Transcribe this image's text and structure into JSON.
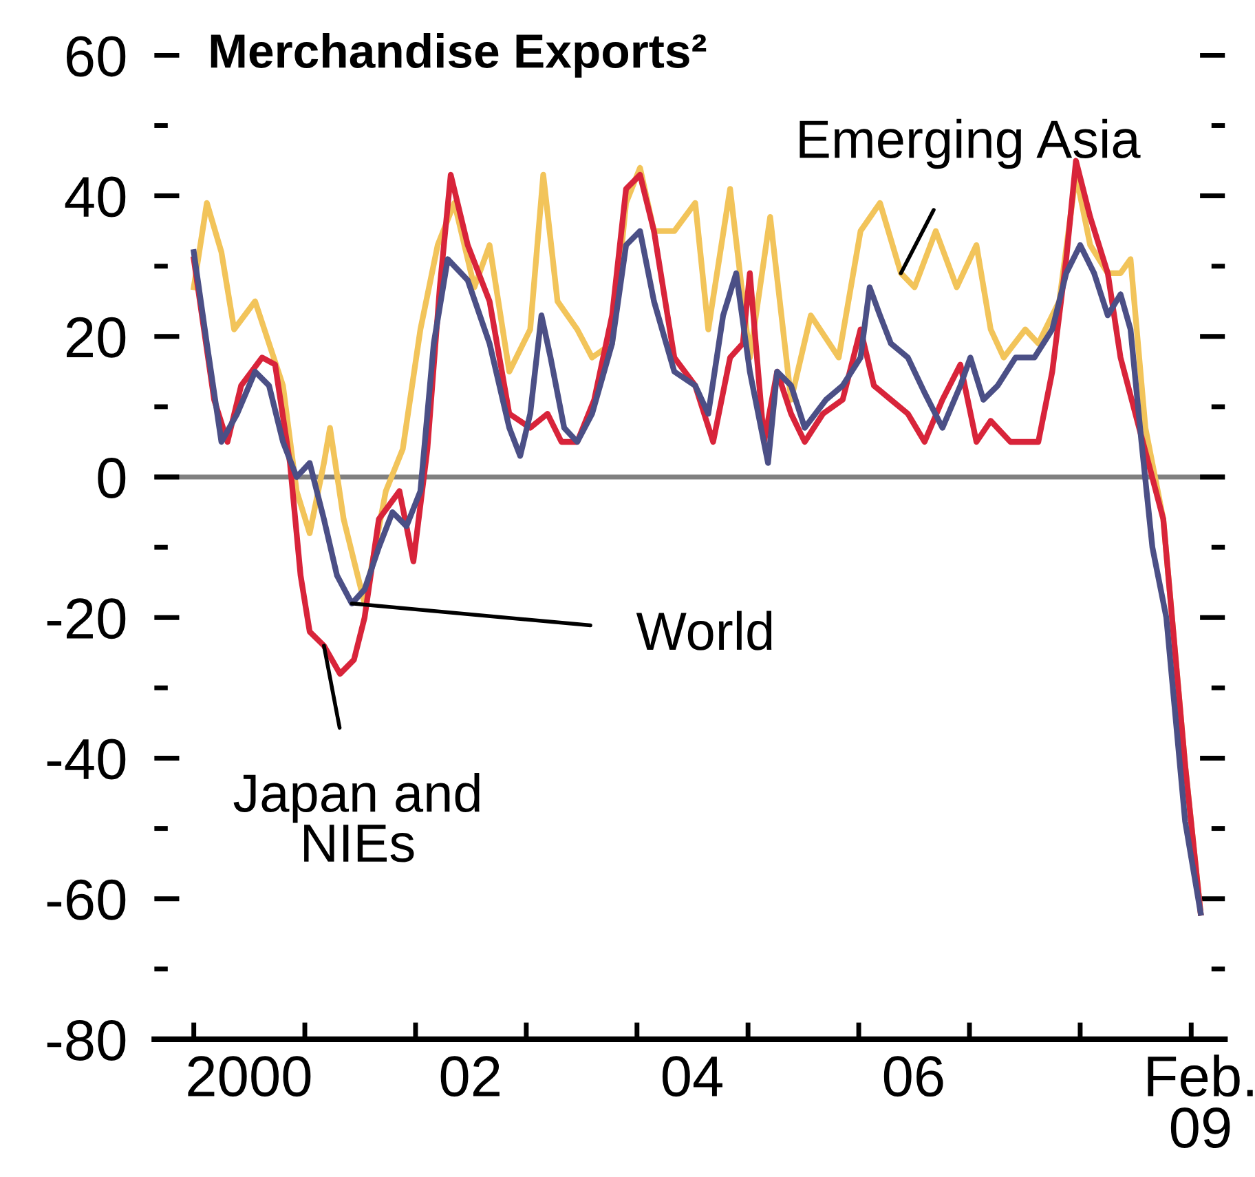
{
  "chart_data": {
    "type": "line",
    "title": "Merchandise Exports²",
    "xlim": [
      "1999-08-24",
      "2009-04-22"
    ],
    "xticks": [
      {
        "value": "2000-01-01",
        "label": null
      },
      {
        "value": "2001-01-01",
        "label": null
      },
      {
        "value": "2002-01-01",
        "label": null
      },
      {
        "value": "2003-01-01",
        "label": null
      },
      {
        "value": "2004-01-01",
        "label": null
      },
      {
        "value": "2005-01-01",
        "label": null
      },
      {
        "value": "2006-01-01",
        "label": null
      },
      {
        "value": "2007-01-01",
        "label": null
      },
      {
        "value": "2008-01-01",
        "label": null
      },
      {
        "value": "2009-01-01",
        "label": null
      },
      {
        "value": "2000-07-01",
        "label": "2000"
      },
      {
        "value": "2002-07-01",
        "label": "02"
      },
      {
        "value": "2004-07-01",
        "label": "04"
      },
      {
        "value": "2006-07-01",
        "label": "06"
      },
      {
        "value": "2009-02-01",
        "label": "Feb.\n09"
      }
    ],
    "ylim": [
      -80,
      60
    ],
    "yticks": [
      -80,
      {
        "value": -70,
        "label": null
      },
      -60,
      {
        "value": -50,
        "label": null
      },
      -40,
      {
        "value": -30,
        "label": null
      },
      -20,
      {
        "value": -10,
        "label": null
      },
      0,
      {
        "value": 10,
        "label": null
      },
      20,
      {
        "value": 30,
        "label": null
      },
      40,
      {
        "value": 50,
        "label": null
      },
      60
    ],
    "ref_lines": [
      {
        "axis": "y",
        "value": 0,
        "label": null,
        "color": "#808080"
      }
    ],
    "grid": false,
    "legend": false,
    "marker": "none",
    "line_style": "solid",
    "series": [
      {
        "name": "Emerging Asia",
        "color": "#f2c45a",
        "x": [
          "2000-01-01",
          "2000-02-13",
          "2000-04-01",
          "2000-05-13",
          "2000-07-21",
          "2000-09-05",
          "2000-10-21",
          "2000-12-05",
          "2001-01-17",
          "2001-03-05",
          "2001-03-25",
          "2001-05-09",
          "2001-07-17",
          "2001-09-25",
          "2001-11-20",
          "2002-01-17",
          "2002-03-15",
          "2002-05-09",
          "2002-07-14",
          "2002-09-02",
          "2002-11-06",
          "2003-01-14",
          "2003-02-26",
          "2003-04-14",
          "2003-06-18",
          "2003-08-06",
          "2003-10-11",
          "2003-11-26",
          "2004-01-11",
          "2004-02-26",
          "2004-05-03",
          "2004-07-11",
          "2004-08-23",
          "2004-11-03",
          "2005-01-07",
          "2005-03-15",
          "2005-05-23",
          "2005-07-27",
          "2005-10-27",
          "2006-01-07",
          "2006-03-12",
          "2006-05-20",
          "2006-07-04",
          "2006-09-12",
          "2006-11-20",
          "2007-01-24",
          "2007-03-12",
          "2007-04-24",
          "2007-07-04",
          "2007-08-16",
          "2007-10-24",
          "2007-12-18",
          "2008-02-03",
          "2008-04-01",
          "2008-05-13",
          "2008-06-15",
          "2008-08-03",
          "2008-10-01",
          "2008-12-12",
          "2009-02-01"
        ],
        "values": [
          27,
          39,
          32,
          21,
          25,
          19,
          13,
          -2,
          -8,
          2,
          7,
          -6,
          -18,
          -2,
          4,
          21,
          33,
          39,
          27,
          33,
          15,
          21,
          43,
          25,
          21,
          17,
          19,
          39,
          44,
          35,
          35,
          39,
          21,
          41,
          17,
          37,
          11,
          23,
          17,
          35,
          39,
          29,
          27,
          35,
          27,
          33,
          21,
          17,
          21,
          19,
          25,
          43,
          33,
          29,
          29,
          31,
          7,
          -6,
          -41,
          -62
        ]
      },
      {
        "name": "Japan and NIEs",
        "color": "#d8243a",
        "x": [
          "2000-01-01",
          "2000-03-08",
          "2000-04-21",
          "2000-06-05",
          "2000-08-13",
          "2000-09-25",
          "2000-11-13",
          "2000-12-18",
          "2001-01-17",
          "2001-03-05",
          "2001-04-27",
          "2001-06-12",
          "2001-07-17",
          "2001-09-02",
          "2001-11-09",
          "2001-12-25",
          "2002-02-09",
          "2002-03-22",
          "2002-04-27",
          "2002-06-22",
          "2002-09-02",
          "2002-11-06",
          "2003-01-14",
          "2003-03-12",
          "2003-04-27",
          "2003-06-18",
          "2003-08-13",
          "2003-10-11",
          "2003-11-26",
          "2004-01-11",
          "2004-02-26",
          "2004-05-03",
          "2004-07-11",
          "2004-09-08",
          "2004-11-03",
          "2004-12-15",
          "2005-01-07",
          "2005-02-23",
          "2005-04-07",
          "2005-05-23",
          "2005-07-07",
          "2005-09-05",
          "2005-11-09",
          "2006-01-07",
          "2006-02-20",
          "2006-04-17",
          "2006-06-12",
          "2006-08-06",
          "2006-10-04",
          "2006-12-02",
          "2007-01-24",
          "2007-03-12",
          "2007-05-16",
          "2007-08-16",
          "2007-10-01",
          "2007-11-16",
          "2007-12-18",
          "2008-02-03",
          "2008-04-01",
          "2008-05-13",
          "2008-07-01",
          "2008-08-13",
          "2008-10-01",
          "2008-12-12",
          "2009-02-01"
        ],
        "values": [
          31,
          11,
          5,
          13,
          17,
          16,
          2,
          -14,
          -22,
          -24,
          -28,
          -26,
          -20,
          -6,
          -2,
          -12,
          4,
          27,
          43,
          33,
          25,
          9,
          7,
          9,
          5,
          5,
          11,
          23,
          41,
          43,
          35,
          17,
          13,
          5,
          17,
          19,
          29,
          5,
          15,
          9,
          5,
          9,
          11,
          21,
          13,
          11,
          9,
          5,
          11,
          16,
          5,
          8,
          5,
          5,
          15,
          31,
          45,
          37,
          29,
          17,
          9,
          2,
          -6,
          -41,
          -62
        ]
      },
      {
        "name": "World",
        "color": "#4b4f86",
        "x": [
          "2000-01-01",
          "2000-02-13",
          "2000-04-01",
          "2000-05-23",
          "2000-07-21",
          "2000-09-05",
          "2000-10-21",
          "2000-12-05",
          "2001-01-17",
          "2001-03-05",
          "2001-04-17",
          "2001-06-05",
          "2001-07-17",
          "2001-09-02",
          "2001-10-17",
          "2001-12-02",
          "2002-01-17",
          "2002-03-02",
          "2002-04-17",
          "2002-06-22",
          "2002-09-02",
          "2002-11-06",
          "2002-12-12",
          "2003-01-14",
          "2003-02-20",
          "2003-03-22",
          "2003-05-06",
          "2003-06-18",
          "2003-08-06",
          "2003-10-11",
          "2003-11-26",
          "2004-01-11",
          "2004-02-26",
          "2004-05-03",
          "2004-07-11",
          "2004-08-23",
          "2004-10-11",
          "2004-11-23",
          "2005-01-07",
          "2005-03-08",
          "2005-04-07",
          "2005-05-23",
          "2005-07-07",
          "2005-09-15",
          "2005-11-09",
          "2006-01-07",
          "2006-02-06",
          "2006-03-12",
          "2006-04-17",
          "2006-06-12",
          "2006-08-06",
          "2006-10-04",
          "2006-12-02",
          "2007-01-04",
          "2007-02-16",
          "2007-04-04",
          "2007-06-02",
          "2007-08-03",
          "2007-10-01",
          "2007-11-16",
          "2008-01-01",
          "2008-02-16",
          "2008-04-01",
          "2008-05-13",
          "2008-06-15",
          "2008-07-21",
          "2008-08-26",
          "2008-10-11",
          "2008-12-12",
          "2009-02-01"
        ],
        "values": [
          32,
          19,
          5,
          9,
          15,
          13,
          5,
          0,
          2,
          -6,
          -14,
          -18,
          -16,
          -10,
          -5,
          -7,
          -2,
          19,
          31,
          28,
          19,
          7,
          3,
          9,
          23,
          17,
          7,
          5,
          9,
          19,
          33,
          35,
          25,
          15,
          13,
          9,
          23,
          29,
          15,
          2,
          15,
          13,
          7,
          11,
          13,
          17,
          27,
          23,
          19,
          17,
          12,
          7,
          13,
          17,
          11,
          13,
          17,
          17,
          21,
          29,
          33,
          29,
          23,
          26,
          21,
          5,
          -10,
          -20,
          -49,
          -62
        ]
      }
    ]
  }
}
